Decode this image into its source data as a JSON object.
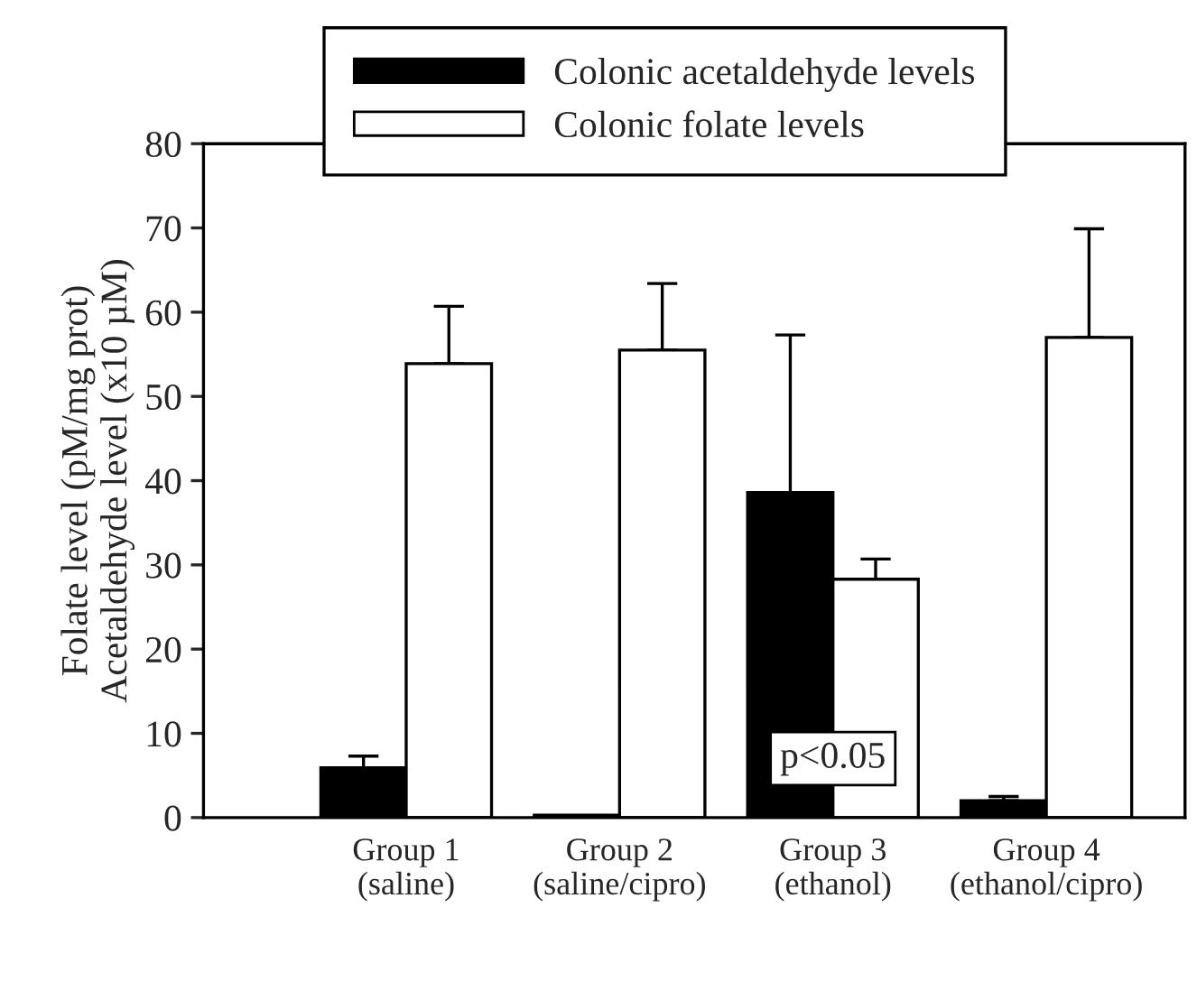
{
  "chart_data": {
    "type": "bar",
    "ylabel": "Folate level (pM/mg prot)\nAcetaldehyde level (x10 µM)",
    "categories": [
      "Group 1\n(saline)",
      "Group 2\n(saline/cipro)",
      "Group 3\n(ethanol)",
      "Group 4\n(ethanol/cipro)"
    ],
    "series": [
      {
        "name": "Colonic acetaldehyde levels",
        "color": "#000000",
        "values": [
          5.9,
          0.3,
          38.6,
          2.0
        ],
        "errors": [
          [
            5.9,
            7.3
          ],
          null,
          [
            38.6,
            57.3
          ],
          [
            2.0,
            2.5
          ]
        ]
      },
      {
        "name": "Colonic folate levels",
        "color": "#ffffff",
        "values": [
          53.9,
          55.5,
          28.3,
          57.0
        ],
        "errors": [
          [
            53.9,
            60.7
          ],
          [
            55.5,
            63.4
          ],
          [
            28.3,
            30.7
          ],
          [
            57.0,
            69.9
          ]
        ]
      }
    ],
    "ylim": [
      0,
      80
    ],
    "yticks": [
      0,
      10,
      20,
      30,
      40,
      50,
      60,
      70,
      80
    ],
    "annotations": [
      "p<0.05"
    ],
    "legend": "top",
    "grid": false
  }
}
